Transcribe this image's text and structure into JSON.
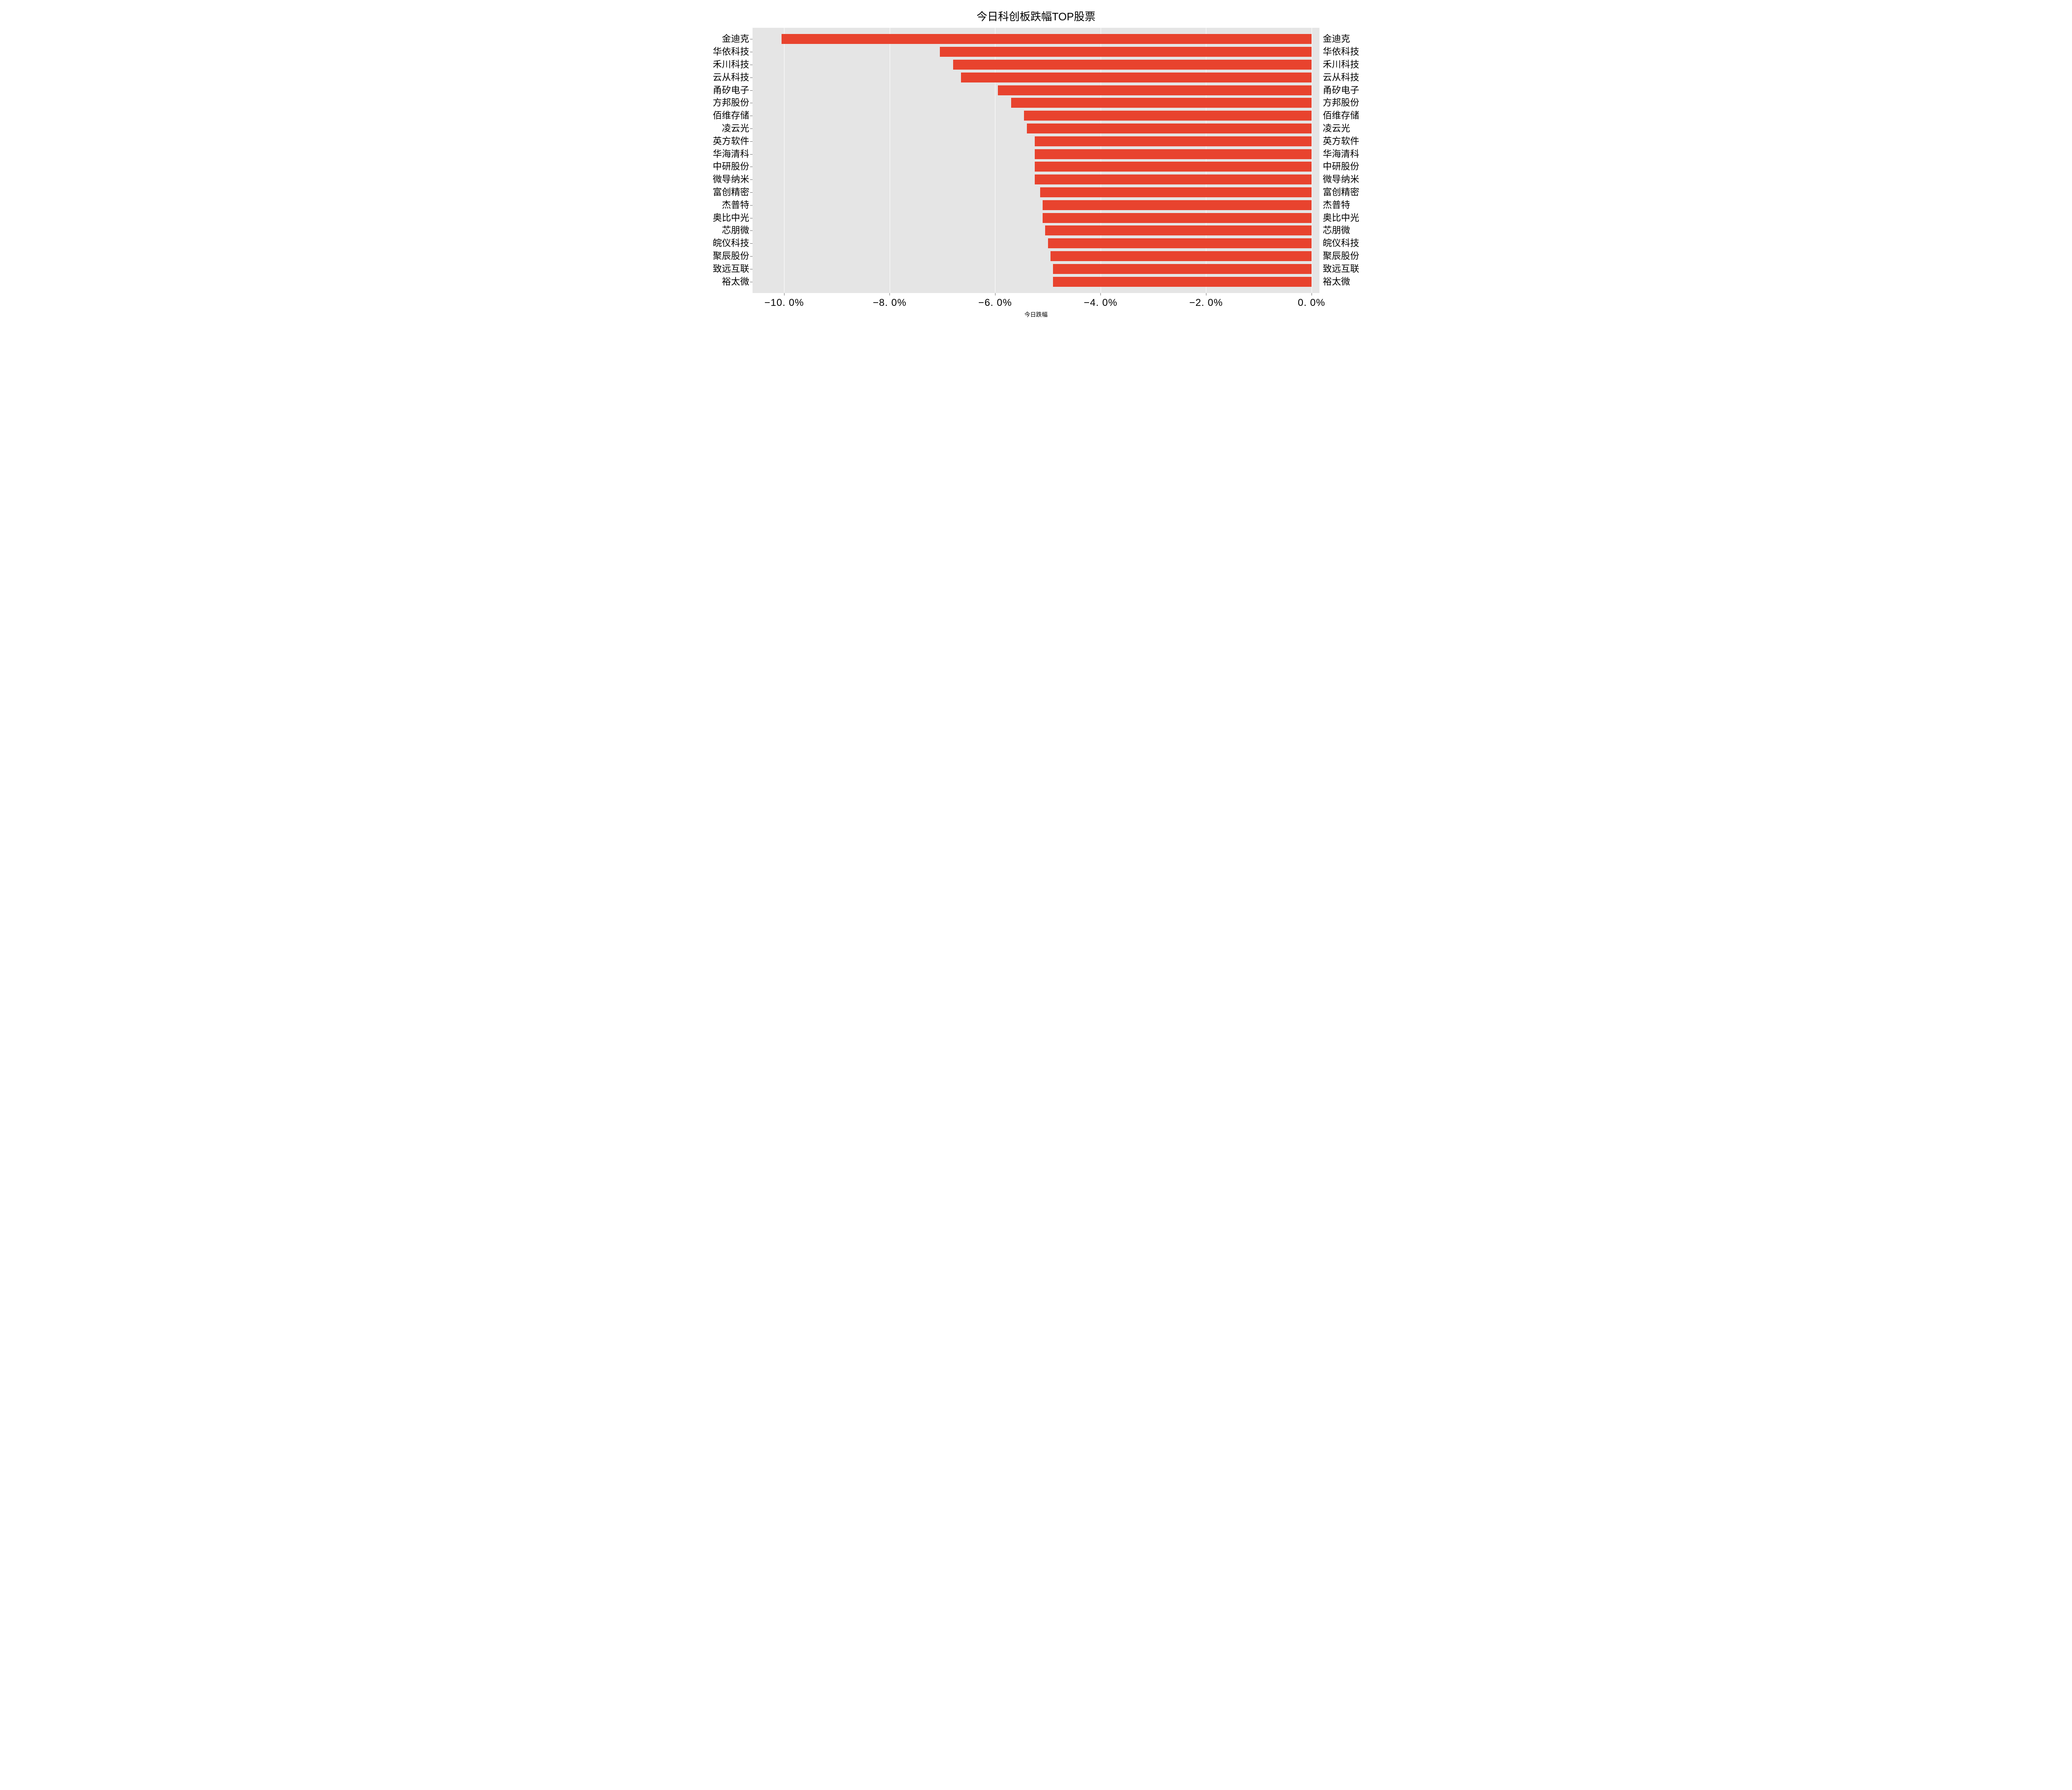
{
  "chart": {
    "type": "bar-horizontal",
    "title": "今日科创板跌幅TOP股票",
    "xlabel": "今日跌幅",
    "background_color": "#e5e5e5",
    "grid_color": "#ffffff",
    "bar_color": "#e8432e",
    "title_fontsize": 26,
    "ytick_fontsize": 22,
    "xtick_fontsize": 24,
    "xlabel_fontsize": 14,
    "xlim": [
      -10.6,
      0.15
    ],
    "xtick_step": 2.0,
    "xticks": [
      -10,
      -8,
      -6,
      -4,
      -2,
      0
    ],
    "xtick_labels": [
      "−10. 0%",
      "−8. 0%",
      "−6. 0%",
      "−4. 0%",
      "−2. 0%",
      "0. 0%"
    ],
    "categories": [
      "金迪克",
      "华依科技",
      "禾川科技",
      "云从科技",
      "甬矽电子",
      "方邦股份",
      "佰维存储",
      "凌云光",
      "英方软件",
      "华海清科",
      "中研股份",
      "微导纳米",
      "富创精密",
      "杰普特",
      "奥比中光",
      "芯朋微",
      "皖仪科技",
      "聚辰股份",
      "致远互联",
      "裕太微"
    ],
    "values": [
      -10.05,
      -7.05,
      -6.8,
      -6.65,
      -5.95,
      -5.7,
      -5.45,
      -5.4,
      -5.25,
      -5.25,
      -5.25,
      -5.25,
      -5.15,
      -5.1,
      -5.1,
      -5.05,
      -5.0,
      -4.95,
      -4.9,
      -4.9
    ]
  }
}
